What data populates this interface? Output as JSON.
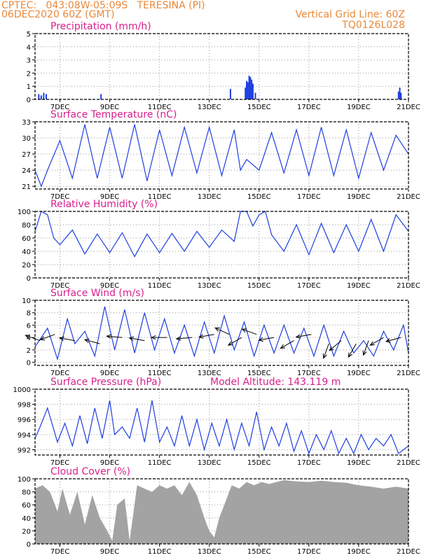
{
  "header": {
    "line1_left": "CPTEC:   043:08W-05:09S   TERESINA (PI)",
    "line2_left": "06DEC2020 60Z (GMT)",
    "line1_right": "Vertical Grid Line: 60Z",
    "line2_right": "TQ0126L028"
  },
  "colors": {
    "header": "#e8893a",
    "title": "#d81f8c",
    "series": "#1f3fe0",
    "cloud": "#a3a3a3",
    "wind_arrow": "#000000",
    "grid": "#9a9a9a"
  },
  "x_ticks": [
    "7DEC",
    "9DEC",
    "11DEC",
    "13DEC",
    "15DEC",
    "17DEC",
    "19DEC",
    "21DEC"
  ],
  "chart_data": [
    {
      "type": "bar",
      "title": "Precipitation (mm/h)",
      "ylim": [
        0,
        5
      ],
      "yticks": [
        0,
        1,
        2,
        3,
        4,
        5
      ],
      "grid": true,
      "x_unit": "day of December 2020",
      "x": [
        6.15,
        6.25,
        6.35,
        6.45,
        8.65,
        13.85,
        14.45,
        14.5,
        14.55,
        14.6,
        14.65,
        14.7,
        14.75,
        14.85,
        20.6,
        20.65,
        20.7
      ],
      "values": [
        0.4,
        0.3,
        0.5,
        0.4,
        0.4,
        0.8,
        0.9,
        1.4,
        1.3,
        1.8,
        1.7,
        1.5,
        1.2,
        0.5,
        0.6,
        0.9,
        0.5
      ]
    },
    {
      "type": "line",
      "title": "Surface Temperature (nC)",
      "ylim": [
        20.5,
        33
      ],
      "yticks": [
        21,
        24,
        27,
        30,
        33
      ],
      "grid": true,
      "x_unit": "day of December 2020",
      "x": [
        6.0,
        6.25,
        6.5,
        7.0,
        7.5,
        8.0,
        8.5,
        9.0,
        9.5,
        10.0,
        10.5,
        11.0,
        11.5,
        12.0,
        12.5,
        13.0,
        13.5,
        14.0,
        14.25,
        14.5,
        14.75,
        15.0,
        15.5,
        16.0,
        16.5,
        17.0,
        17.5,
        18.0,
        18.5,
        19.0,
        19.5,
        20.0,
        20.5,
        21.0
      ],
      "values": [
        24.0,
        21.0,
        24.0,
        29.5,
        22.5,
        32.5,
        22.5,
        32.0,
        22.5,
        32.5,
        22.0,
        31.5,
        23.0,
        32.0,
        23.5,
        32.0,
        23.0,
        31.5,
        24.0,
        26.0,
        25.0,
        24.0,
        31.0,
        23.5,
        31.5,
        23.0,
        32.0,
        23.0,
        31.5,
        22.5,
        31.0,
        24.0,
        30.5,
        27.0
      ]
    },
    {
      "type": "line",
      "title": "Relative Humidity (%)",
      "ylim": [
        0,
        100
      ],
      "yticks": [
        0,
        20,
        40,
        60,
        80,
        100
      ],
      "grid": true,
      "x_unit": "day of December 2020",
      "x": [
        6.0,
        6.25,
        6.5,
        6.75,
        7.0,
        7.5,
        8.0,
        8.5,
        9.0,
        9.5,
        10.0,
        10.5,
        11.0,
        11.5,
        12.0,
        12.5,
        13.0,
        13.5,
        14.0,
        14.25,
        14.5,
        14.75,
        15.0,
        15.25,
        15.5,
        16.0,
        16.5,
        17.0,
        17.5,
        18.0,
        18.5,
        19.0,
        19.5,
        20.0,
        20.5,
        21.0
      ],
      "values": [
        70,
        100,
        95,
        60,
        50,
        72,
        36,
        66,
        38,
        68,
        32,
        66,
        38,
        67,
        40,
        70,
        46,
        72,
        55,
        100,
        100,
        78,
        95,
        100,
        65,
        40,
        80,
        35,
        82,
        38,
        80,
        40,
        88,
        40,
        95,
        70
      ]
    },
    {
      "type": "line",
      "title": "Surface Wind (m/s)",
      "ylim": [
        -0.5,
        10
      ],
      "yticks": [
        0,
        2,
        4,
        6,
        8,
        10
      ],
      "grid": true,
      "x_unit": "day of December 2020",
      "x": [
        6.0,
        6.5,
        6.9,
        7.3,
        7.6,
        8.0,
        8.4,
        8.8,
        9.2,
        9.6,
        10.0,
        10.4,
        10.8,
        11.2,
        11.6,
        12.0,
        12.4,
        12.8,
        13.2,
        13.6,
        14.0,
        14.4,
        14.8,
        15.2,
        15.6,
        16.0,
        16.4,
        16.8,
        17.2,
        17.6,
        18.0,
        18.4,
        18.8,
        19.2,
        19.6,
        20.0,
        20.4,
        20.8,
        21.0
      ],
      "values": [
        2.5,
        5.5,
        0.5,
        7.0,
        3.0,
        5.0,
        1.0,
        9.0,
        2.0,
        8.5,
        1.5,
        8.0,
        2.0,
        7.0,
        1.5,
        6.0,
        1.0,
        6.5,
        1.5,
        7.5,
        2.0,
        6.5,
        1.0,
        6.0,
        1.5,
        6.0,
        1.5,
        5.5,
        1.0,
        6.0,
        1.0,
        5.0,
        1.5,
        3.5,
        1.0,
        5.0,
        2.0,
        6.0,
        1.5
      ],
      "arrows": [
        {
          "x": 6.2,
          "speed": 3.5,
          "angle_deg": 200
        },
        {
          "x": 6.8,
          "speed": 4.5,
          "angle_deg": 160
        },
        {
          "x": 7.6,
          "speed": 3.5,
          "angle_deg": 190
        },
        {
          "x": 8.6,
          "speed": 3.0,
          "angle_deg": 195
        },
        {
          "x": 9.5,
          "speed": 4.0,
          "angle_deg": 185
        },
        {
          "x": 10.4,
          "speed": 3.5,
          "angle_deg": 190
        },
        {
          "x": 11.3,
          "speed": 4.0,
          "angle_deg": 180
        },
        {
          "x": 12.3,
          "speed": 4.0,
          "angle_deg": 175
        },
        {
          "x": 13.2,
          "speed": 4.5,
          "angle_deg": 170
        },
        {
          "x": 13.8,
          "speed": 4.5,
          "angle_deg": 205
        },
        {
          "x": 14.3,
          "speed": 4.0,
          "angle_deg": 150
        },
        {
          "x": 14.9,
          "speed": 4.5,
          "angle_deg": 200
        },
        {
          "x": 15.6,
          "speed": 4.0,
          "angle_deg": 170
        },
        {
          "x": 16.4,
          "speed": 3.5,
          "angle_deg": 150
        },
        {
          "x": 17.1,
          "speed": 4.5,
          "angle_deg": 170
        },
        {
          "x": 17.8,
          "speed": 3.0,
          "angle_deg": 110
        },
        {
          "x": 18.3,
          "speed": 3.5,
          "angle_deg": 140
        },
        {
          "x": 18.9,
          "speed": 3.0,
          "angle_deg": 120
        },
        {
          "x": 19.4,
          "speed": 3.5,
          "angle_deg": 110
        },
        {
          "x": 20.0,
          "speed": 4.0,
          "angle_deg": 150
        },
        {
          "x": 20.7,
          "speed": 4.0,
          "angle_deg": 165
        }
      ]
    },
    {
      "type": "line",
      "title": "Surface Pressure (hPa)",
      "subtitle": "Model Altitude: 143.119 m",
      "ylim": [
        991.3,
        1000
      ],
      "yticks": [
        992,
        994,
        996,
        998,
        1000
      ],
      "grid": true,
      "x_unit": "day of December 2020",
      "x": [
        6.0,
        6.2,
        6.5,
        6.9,
        7.2,
        7.5,
        7.8,
        8.1,
        8.4,
        8.7,
        9.0,
        9.2,
        9.5,
        9.8,
        10.1,
        10.4,
        10.7,
        11.0,
        11.3,
        11.6,
        11.9,
        12.2,
        12.5,
        12.8,
        13.1,
        13.4,
        13.7,
        14.0,
        14.3,
        14.6,
        14.9,
        15.2,
        15.5,
        15.8,
        16.1,
        16.4,
        16.7,
        17.0,
        17.3,
        17.6,
        17.9,
        18.2,
        18.5,
        18.8,
        19.1,
        19.4,
        19.7,
        20.0,
        20.3,
        20.6,
        21.0
      ],
      "values": [
        993.5,
        995.0,
        997.5,
        993.0,
        995.5,
        992.5,
        996.5,
        992.8,
        997.5,
        993.5,
        998.5,
        994.0,
        995.0,
        993.5,
        997.5,
        993.0,
        998.5,
        993.0,
        995.0,
        992.5,
        996.5,
        992.5,
        996.0,
        992.0,
        995.5,
        992.5,
        996.0,
        992.0,
        995.5,
        992.5,
        997.0,
        992.0,
        995.0,
        992.5,
        995.5,
        991.8,
        994.5,
        991.5,
        994.0,
        992.0,
        994.5,
        991.5,
        993.5,
        991.5,
        994.0,
        992.0,
        993.5,
        992.5,
        994.0,
        991.5,
        992.5
      ]
    },
    {
      "type": "area",
      "title": "Cloud Cover (%)",
      "ylim": [
        0,
        100
      ],
      "yticks": [
        0,
        20,
        40,
        60,
        80,
        100
      ],
      "grid": true,
      "x_unit": "day of December 2020",
      "x": [
        6.0,
        6.3,
        6.6,
        6.9,
        7.1,
        7.4,
        7.7,
        8.0,
        8.3,
        8.6,
        8.9,
        9.1,
        9.3,
        9.6,
        9.8,
        10.1,
        10.4,
        10.7,
        11.0,
        11.3,
        11.6,
        11.9,
        12.2,
        12.5,
        12.8,
        13.0,
        13.2,
        13.4,
        13.6,
        13.9,
        14.2,
        14.5,
        14.8,
        15.1,
        15.4,
        15.7,
        16.0,
        16.5,
        17.0,
        17.5,
        18.0,
        18.5,
        19.0,
        19.5,
        20.0,
        20.5,
        21.0
      ],
      "values": [
        85,
        90,
        80,
        50,
        85,
        45,
        80,
        30,
        75,
        40,
        20,
        5,
        60,
        70,
        5,
        90,
        85,
        80,
        90,
        85,
        90,
        75,
        95,
        75,
        40,
        20,
        10,
        40,
        60,
        90,
        85,
        95,
        90,
        95,
        92,
        95,
        98,
        96,
        95,
        97,
        95,
        94,
        90,
        88,
        85,
        88,
        85
      ]
    }
  ]
}
